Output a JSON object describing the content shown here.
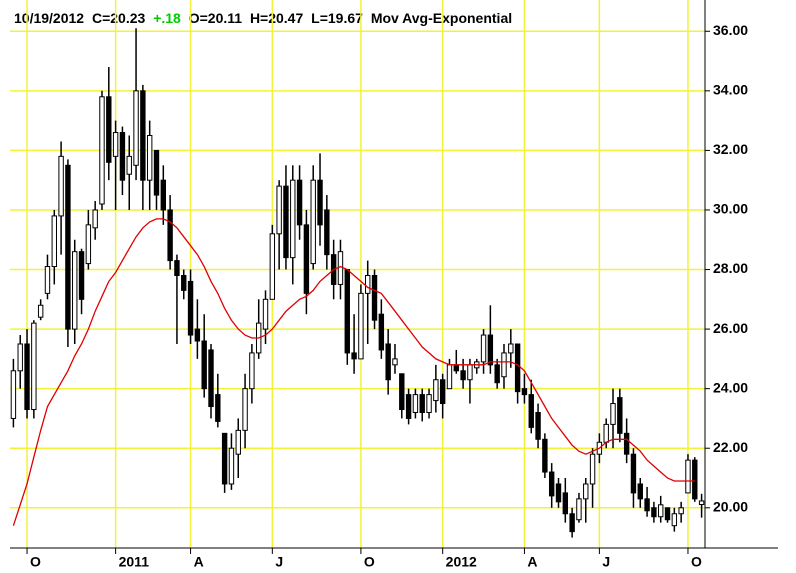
{
  "chart_data": {
    "type": "candlestick",
    "header": {
      "date": "10/19/2012",
      "close": "C=20.23",
      "change": "+.18",
      "change_color": "#00cc00",
      "open": "O=20.11",
      "high": "H=20.47",
      "low": "L=19.67"
    },
    "categories": [
      null,
      null,
      "O",
      null,
      null,
      null,
      null,
      null,
      null,
      null,
      null,
      null,
      null,
      null,
      null,
      "2011",
      null,
      null,
      null,
      null,
      null,
      null,
      null,
      null,
      null,
      null,
      "A",
      null,
      null,
      null,
      null,
      null,
      null,
      null,
      null,
      null,
      null,
      null,
      "J",
      null,
      null,
      null,
      null,
      null,
      null,
      null,
      null,
      null,
      null,
      null,
      null,
      "O",
      null,
      null,
      null,
      null,
      null,
      null,
      null,
      null,
      null,
      null,
      null,
      "2012",
      null,
      null,
      null,
      null,
      null,
      null,
      null,
      null,
      null,
      null,
      null,
      "A",
      null,
      null,
      null,
      null,
      null,
      null,
      null,
      null,
      null,
      null,
      "J",
      null,
      null,
      null,
      null,
      null,
      null,
      null,
      null,
      null,
      null,
      null,
      null,
      "O",
      null,
      null
    ],
    "open": [
      23.0,
      24.6,
      25.5,
      23.3,
      26.4,
      27.2,
      28.1,
      29.8,
      31.5,
      26.0,
      28.6,
      28.2,
      29.4,
      30.2,
      33.8,
      31.8,
      32.6,
      31.2,
      31.5,
      34.0,
      31.0,
      32.0,
      31.0,
      30.0,
      28.3,
      27.8,
      27.6,
      26.0,
      25.6,
      25.3,
      23.8,
      22.5,
      20.8,
      21.8,
      22.6,
      24.0,
      25.2,
      26.0,
      27.0,
      29.2,
      30.8,
      28.4,
      31.0,
      29.5,
      28.2,
      31.0,
      30.0,
      28.5,
      27.5,
      28.0,
      25.2,
      25.0,
      27.2,
      27.8,
      26.5,
      25.5,
      24.8,
      24.5,
      23.8,
      23.2,
      23.8,
      23.2,
      23.6,
      24.3,
      24.0,
      24.8,
      24.6,
      24.3,
      24.7,
      24.9,
      25.8,
      24.8,
      24.4,
      25.2,
      25.5,
      24.0,
      23.8,
      23.2,
      22.3,
      21.2,
      20.8,
      20.5,
      19.8,
      19.6,
      20.3,
      20.8,
      21.8,
      22.2,
      22.8,
      23.7,
      22.5,
      21.8,
      20.8,
      20.3,
      20.0,
      19.7,
      20.0,
      19.4,
      19.8,
      20.5,
      21.6,
      20.11
    ],
    "high": [
      25.0,
      25.8,
      26.0,
      26.3,
      27.0,
      28.5,
      30.0,
      32.3,
      31.7,
      29.0,
      28.7,
      30.0,
      30.3,
      34.0,
      34.8,
      33.0,
      32.8,
      32.5,
      36.1,
      34.2,
      33.0,
      32.0,
      31.5,
      30.5,
      28.5,
      28.0,
      28.0,
      27.0,
      26.5,
      25.5,
      24.5,
      22.5,
      22.5,
      23.0,
      24.5,
      25.5,
      27.0,
      27.3,
      29.5,
      31.0,
      31.5,
      31.5,
      31.5,
      30.0,
      31.5,
      31.9,
      30.5,
      29.0,
      29.0,
      28.0,
      26.5,
      27.5,
      28.3,
      28.0,
      27.0,
      26.0,
      25.5,
      24.5,
      24.0,
      24.0,
      24.0,
      24.0,
      24.8,
      24.5,
      25.0,
      25.3,
      25.0,
      25.0,
      25.0,
      26.0,
      26.8,
      25.0,
      25.5,
      26.0,
      25.5,
      24.5,
      24.3,
      23.5,
      22.5,
      21.5,
      21.0,
      21.0,
      20.0,
      20.5,
      21.0,
      22.0,
      22.5,
      23.0,
      24.0,
      24.0,
      23.0,
      22.0,
      21.0,
      20.7,
      20.2,
      20.4,
      20.0,
      20.0,
      20.2,
      21.8,
      21.7,
      20.47
    ],
    "low": [
      22.7,
      24.0,
      23.0,
      23.0,
      26.3,
      27.0,
      27.5,
      28.5,
      25.4,
      25.5,
      26.5,
      28.0,
      29.0,
      30.0,
      31.0,
      30.0,
      30.5,
      30.0,
      31.0,
      30.0,
      30.0,
      30.0,
      29.5,
      28.0,
      25.5,
      27.0,
      25.5,
      25.0,
      23.7,
      23.0,
      22.7,
      20.5,
      20.6,
      21.0,
      22.0,
      23.5,
      25.0,
      25.5,
      27.0,
      28.0,
      28.0,
      27.5,
      29.0,
      26.5,
      28.0,
      28.8,
      28.0,
      27.0,
      27.0,
      24.8,
      24.5,
      25.0,
      25.5,
      26.0,
      25.0,
      23.8,
      24.5,
      23.0,
      22.8,
      23.0,
      22.9,
      23.0,
      23.2,
      23.0,
      24.0,
      24.5,
      24.0,
      23.5,
      24.5,
      24.5,
      24.5,
      24.0,
      24.0,
      24.7,
      23.5,
      23.5,
      22.5,
      22.0,
      21.0,
      20.0,
      20.0,
      19.5,
      19.0,
      19.5,
      19.5,
      20.0,
      21.5,
      22.0,
      22.0,
      22.2,
      21.5,
      20.0,
      20.0,
      19.7,
      19.5,
      19.5,
      19.5,
      19.2,
      19.5,
      20.5,
      20.2,
      19.67
    ],
    "close": [
      24.6,
      25.5,
      23.3,
      26.2,
      26.8,
      28.1,
      29.8,
      31.8,
      26.0,
      28.6,
      27.0,
      29.5,
      30.0,
      33.8,
      31.6,
      32.6,
      31.0,
      31.8,
      34.0,
      31.0,
      32.5,
      30.5,
      30.0,
      28.3,
      27.8,
      27.3,
      25.8,
      25.6,
      24.0,
      23.4,
      22.9,
      20.8,
      22.0,
      22.6,
      24.0,
      25.2,
      26.2,
      27.0,
      29.2,
      30.8,
      28.4,
      31.0,
      29.5,
      27.2,
      31.0,
      29.5,
      28.5,
      27.5,
      28.6,
      25.2,
      25.0,
      27.2,
      27.8,
      26.3,
      25.3,
      24.3,
      25.0,
      23.3,
      23.0,
      23.8,
      23.2,
      23.8,
      24.3,
      23.5,
      24.8,
      24.6,
      24.3,
      24.8,
      24.9,
      25.8,
      24.8,
      24.2,
      25.2,
      25.5,
      23.9,
      23.8,
      22.7,
      22.3,
      21.2,
      20.4,
      20.2,
      19.8,
      19.2,
      20.3,
      20.8,
      21.8,
      22.2,
      22.8,
      23.5,
      22.5,
      21.8,
      20.5,
      20.3,
      19.9,
      19.7,
      20.1,
      19.6,
      19.8,
      20.0,
      21.6,
      20.3,
      20.23
    ],
    "ema": {
      "name": "Mov Avg-Exponential",
      "color": "#e00000",
      "values": [
        19.4,
        20.1,
        20.8,
        21.7,
        22.6,
        23.4,
        23.8,
        24.2,
        24.6,
        25.1,
        25.5,
        26.0,
        26.6,
        27.1,
        27.6,
        27.9,
        28.3,
        28.7,
        29.1,
        29.4,
        29.6,
        29.7,
        29.7,
        29.6,
        29.4,
        29.1,
        28.8,
        28.5,
        28.1,
        27.6,
        27.2,
        26.7,
        26.3,
        26.0,
        25.8,
        25.7,
        25.7,
        25.8,
        26.0,
        26.3,
        26.6,
        26.8,
        27.0,
        27.1,
        27.3,
        27.6,
        27.8,
        28.0,
        28.1,
        28.0,
        27.8,
        27.6,
        27.4,
        27.3,
        27.2,
        26.9,
        26.6,
        26.3,
        26.0,
        25.7,
        25.4,
        25.2,
        25.0,
        24.9,
        24.8,
        24.8,
        24.8,
        24.8,
        24.8,
        24.8,
        24.9,
        24.9,
        24.9,
        24.9,
        24.8,
        24.6,
        24.2,
        23.8,
        23.4,
        23.0,
        22.7,
        22.4,
        22.1,
        21.9,
        21.8,
        21.9,
        22.0,
        22.2,
        22.3,
        22.3,
        22.3,
        22.1,
        21.9,
        21.6,
        21.4,
        21.2,
        21.0,
        20.9,
        20.9,
        20.9,
        20.9,
        null
      ]
    },
    "ylim": [
      18.65,
      37.05
    ],
    "yticks": [
      {
        "value": 20,
        "label": "20.00"
      },
      {
        "value": 22,
        "label": "22.00"
      },
      {
        "value": 24,
        "label": "24.00"
      },
      {
        "value": 26,
        "label": "26.00"
      },
      {
        "value": 28,
        "label": "28.00"
      },
      {
        "value": 30,
        "label": "30.00"
      },
      {
        "value": 32,
        "label": "32.00"
      },
      {
        "value": 34,
        "label": "34.00"
      },
      {
        "value": 36,
        "label": "36.00"
      }
    ],
    "grid": true,
    "grid_color": "#f2f23a",
    "up_color": "#ffffff",
    "down_color": "#000000"
  }
}
